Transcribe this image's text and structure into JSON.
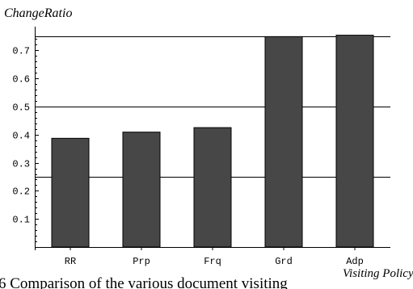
{
  "chart_data": {
    "type": "bar",
    "categories": [
      "RR",
      "Prp",
      "Frq",
      "Grd",
      "Adp"
    ],
    "values": [
      0.387,
      0.409,
      0.425,
      0.749,
      0.754
    ],
    "ylabel": "ChangeRatio",
    "xlabel": "Visiting Policy",
    "ylim": [
      0,
      0.775
    ],
    "yticks": [
      0.1,
      0.2,
      0.3,
      0.4,
      0.5,
      0.6,
      0.7
    ],
    "ytick_labels": [
      "0.1",
      "0.2",
      "0.3",
      "0.4",
      "0.5",
      "0.6",
      "0.7"
    ],
    "reference_lines": [
      0.25,
      0.5,
      0.75
    ],
    "bar_color": "#474747"
  },
  "caption": "6 Comparison of the various document visiting"
}
